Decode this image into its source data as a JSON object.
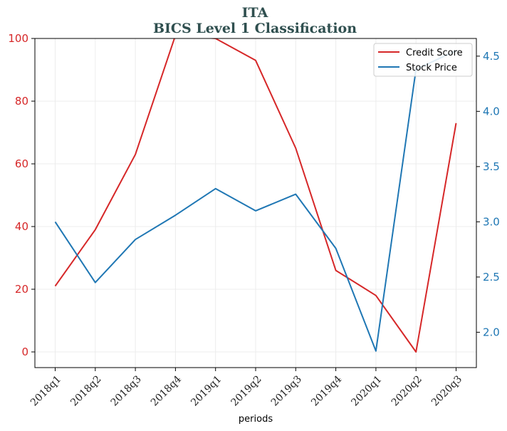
{
  "chart_data": {
    "type": "line",
    "title": "ITA",
    "subtitle": "BICS Level 1 Classification",
    "xlabel": "periods",
    "categories": [
      "2018q1",
      "2018q2",
      "2018q3",
      "2018q4",
      "2019q1",
      "2019q2",
      "2019q3",
      "2019q4",
      "2020q1",
      "2020q2",
      "2020q3"
    ],
    "grid": true,
    "legend_position": "top-right",
    "y_left": {
      "ylim": [
        -5,
        100
      ],
      "ticks": [
        0,
        20,
        40,
        60,
        80,
        100
      ],
      "tick_labels": [
        "0",
        "20",
        "40",
        "60",
        "80",
        "100"
      ],
      "color": "#d62728"
    },
    "y_right": {
      "ylim": [
        1.68,
        4.66
      ],
      "ticks": [
        2.0,
        2.5,
        3.0,
        3.5,
        4.0,
        4.5
      ],
      "tick_labels": [
        "2.0",
        "2.5",
        "3.0",
        "3.5",
        "4.0",
        "4.5"
      ],
      "color": "#1f77b4"
    },
    "series": [
      {
        "name": "Credit Score",
        "axis": "left",
        "color": "#d62728",
        "values": [
          21,
          39,
          63,
          101,
          100,
          93,
          65,
          26,
          18,
          0,
          73
        ]
      },
      {
        "name": "Stock Price",
        "axis": "right",
        "color": "#1f77b4",
        "values": [
          3.0,
          2.45,
          2.84,
          3.06,
          3.3,
          3.1,
          3.25,
          2.76,
          1.83,
          4.38,
          4.55
        ]
      }
    ]
  }
}
